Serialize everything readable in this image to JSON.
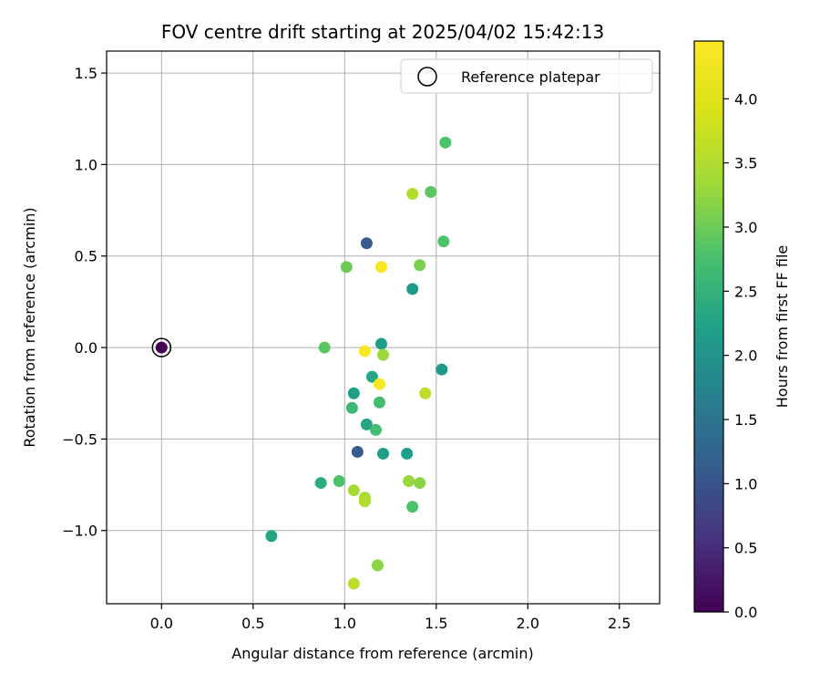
{
  "chart_data": {
    "type": "scatter",
    "title": "FOV centre drift starting at 2025/04/02 15:42:13",
    "xlabel": "Angular distance from reference (arcmin)",
    "ylabel": "Rotation from reference (arcmin)",
    "xlim": [
      -0.3,
      2.72
    ],
    "ylim": [
      -1.4,
      1.62
    ],
    "xticks": [
      0.0,
      0.5,
      1.0,
      1.5,
      2.0,
      2.5
    ],
    "xtick_labels": [
      "0.0",
      "0.5",
      "1.0",
      "1.5",
      "2.0",
      "2.5"
    ],
    "yticks": [
      -1.0,
      -0.5,
      0.0,
      0.5,
      1.0,
      1.5
    ],
    "ytick_labels": [
      "−1.0",
      "−0.5",
      "0.0",
      "0.5",
      "1.0",
      "1.5"
    ],
    "grid": true,
    "legend": {
      "label": "Reference platepar",
      "placement": "top-right"
    },
    "reference_point": {
      "x": 0.0,
      "y": 0.0
    },
    "colorbar": {
      "label": "Hours from first FF file",
      "range": [
        0.0,
        4.45
      ],
      "ticks": [
        0.0,
        0.5,
        1.0,
        1.5,
        2.0,
        2.5,
        3.0,
        3.5,
        4.0
      ],
      "tick_labels": [
        "0.0",
        "0.5",
        "1.0",
        "1.5",
        "2.0",
        "2.5",
        "3.0",
        "3.5",
        "4.0"
      ],
      "colormap": "viridis"
    },
    "points": [
      {
        "x": 0.0,
        "y": 0.0,
        "c": 0.0
      },
      {
        "x": 1.55,
        "y": 1.12,
        "c": 2.8
      },
      {
        "x": 1.37,
        "y": 0.84,
        "c": 3.5
      },
      {
        "x": 1.47,
        "y": 0.85,
        "c": 2.9
      },
      {
        "x": 1.12,
        "y": 0.57,
        "c": 1.1
      },
      {
        "x": 1.54,
        "y": 0.58,
        "c": 2.8
      },
      {
        "x": 1.01,
        "y": 0.44,
        "c": 3.0
      },
      {
        "x": 1.2,
        "y": 0.44,
        "c": 4.4
      },
      {
        "x": 1.41,
        "y": 0.45,
        "c": 3.1
      },
      {
        "x": 1.37,
        "y": 0.32,
        "c": 2.1
      },
      {
        "x": 0.89,
        "y": 0.0,
        "c": 2.9
      },
      {
        "x": 1.2,
        "y": 0.02,
        "c": 2.2
      },
      {
        "x": 1.11,
        "y": -0.02,
        "c": 4.4
      },
      {
        "x": 1.21,
        "y": -0.04,
        "c": 3.3
      },
      {
        "x": 1.53,
        "y": -0.12,
        "c": 2.1
      },
      {
        "x": 1.15,
        "y": -0.16,
        "c": 2.3
      },
      {
        "x": 1.19,
        "y": -0.2,
        "c": 4.4
      },
      {
        "x": 1.05,
        "y": -0.25,
        "c": 2.2
      },
      {
        "x": 1.44,
        "y": -0.25,
        "c": 3.6
      },
      {
        "x": 1.19,
        "y": -0.3,
        "c": 2.7
      },
      {
        "x": 1.04,
        "y": -0.33,
        "c": 2.6
      },
      {
        "x": 1.12,
        "y": -0.42,
        "c": 2.3
      },
      {
        "x": 1.17,
        "y": -0.45,
        "c": 2.7
      },
      {
        "x": 1.07,
        "y": -0.57,
        "c": 1.1
      },
      {
        "x": 1.21,
        "y": -0.58,
        "c": 2.2
      },
      {
        "x": 1.34,
        "y": -0.58,
        "c": 2.2
      },
      {
        "x": 0.87,
        "y": -0.74,
        "c": 2.4
      },
      {
        "x": 0.97,
        "y": -0.73,
        "c": 2.8
      },
      {
        "x": 1.35,
        "y": -0.73,
        "c": 3.3
      },
      {
        "x": 1.41,
        "y": -0.74,
        "c": 3.2
      },
      {
        "x": 1.05,
        "y": -0.78,
        "c": 3.4
      },
      {
        "x": 1.11,
        "y": -0.82,
        "c": 3.4
      },
      {
        "x": 1.11,
        "y": -0.84,
        "c": 3.5
      },
      {
        "x": 1.37,
        "y": -0.87,
        "c": 2.8
      },
      {
        "x": 0.6,
        "y": -1.03,
        "c": 2.3
      },
      {
        "x": 1.18,
        "y": -1.19,
        "c": 3.2
      },
      {
        "x": 1.05,
        "y": -1.29,
        "c": 3.6
      }
    ]
  }
}
